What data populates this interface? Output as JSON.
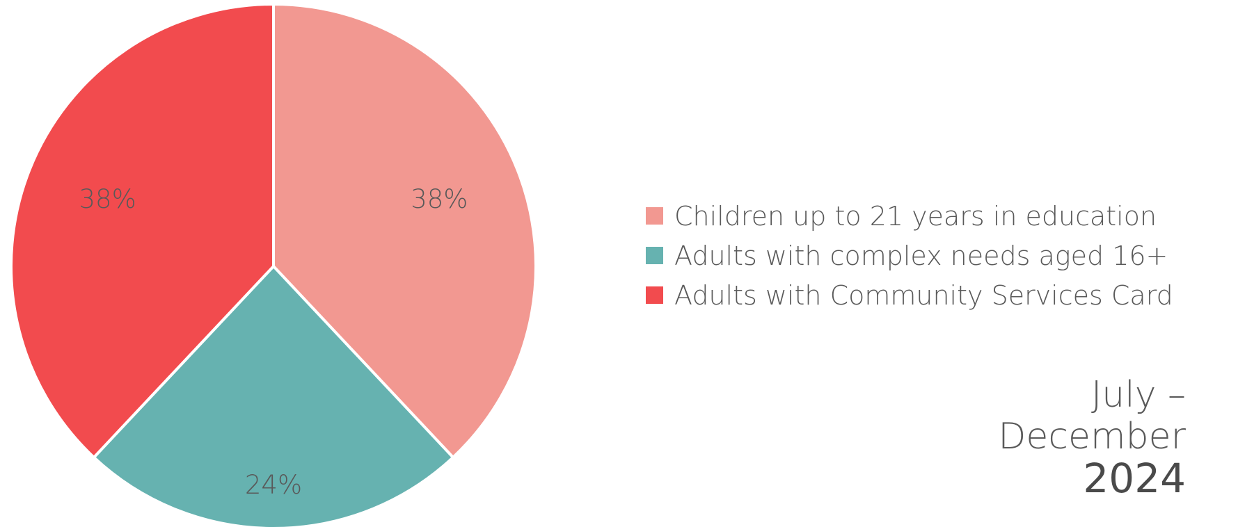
{
  "chart_data": {
    "type": "pie",
    "categories": [
      "Children up to 21 years in education",
      "Adults with complex needs aged 16+",
      "Adults with Community Services Card"
    ],
    "values": [
      38,
      24,
      38
    ],
    "value_labels": [
      "38%",
      "24%",
      "38%"
    ],
    "colors": [
      "#F29891",
      "#66B2B0",
      "#F24B4E"
    ],
    "start_angle": "12 o'clock",
    "direction": "clockwise",
    "legend_placement": "right"
  },
  "period": {
    "line1": "July –",
    "line2": "December",
    "year": "2024"
  }
}
